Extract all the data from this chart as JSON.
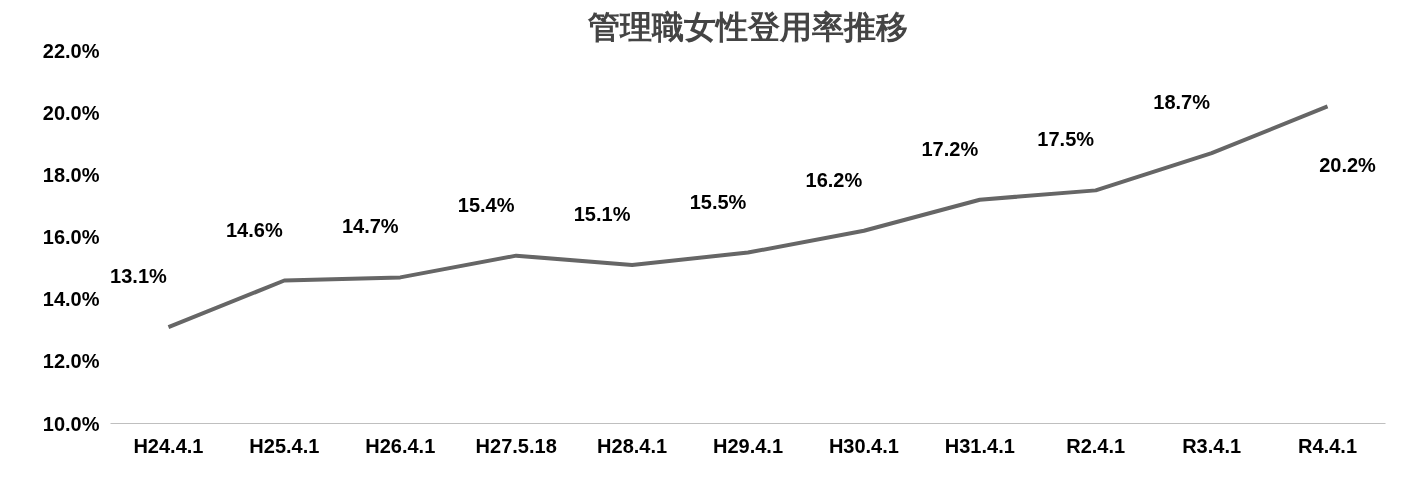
{
  "chart_data": {
    "type": "line",
    "title": "管理職女性登用率推移",
    "categories": [
      "H24.4.1",
      "H25.4.1",
      "H26.4.1",
      "H27.5.18",
      "H28.4.1",
      "H29.4.1",
      "H30.4.1",
      "H31.4.1",
      "R2.4.1",
      "R3.4.1",
      "R4.4.1"
    ],
    "series": [
      {
        "color": "#666666",
        "values": [
          13.1,
          14.6,
          14.7,
          15.4,
          15.1,
          15.5,
          16.2,
          17.2,
          17.5,
          18.7,
          20.2
        ],
        "value_labels": [
          "13.1%",
          "14.6%",
          "14.7%",
          "15.4%",
          "15.1%",
          "15.5%",
          "16.2%",
          "17.2%",
          "17.5%",
          "18.7%",
          "20.2%"
        ]
      }
    ],
    "ylim": [
      10,
      22
    ],
    "yticks": [
      {
        "value": 10,
        "label": "10.0%"
      },
      {
        "value": 12,
        "label": "12.0%"
      },
      {
        "value": 14,
        "label": "14.0%"
      },
      {
        "value": 16,
        "label": "16.0%"
      },
      {
        "value": 18,
        "label": "18.0%"
      },
      {
        "value": 20,
        "label": "20.0%"
      },
      {
        "value": 22,
        "label": "22.0%"
      }
    ],
    "grid": false,
    "marker": "none",
    "line_style": "solid"
  }
}
